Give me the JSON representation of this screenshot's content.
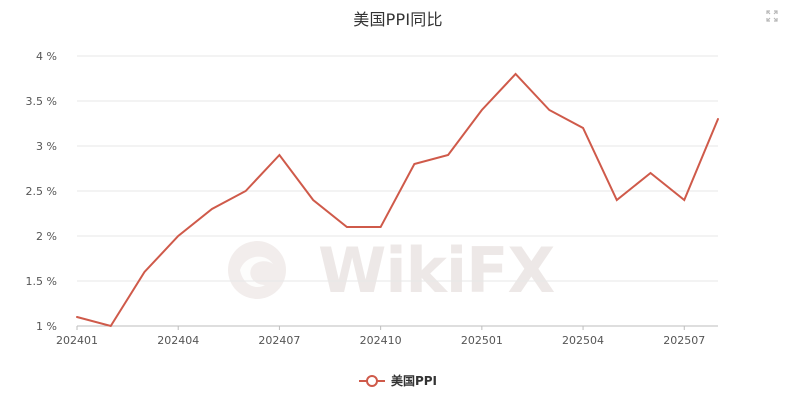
{
  "title": "美国PPI同比",
  "legend": {
    "label": "美国PPI"
  },
  "watermark": {
    "text": "WikiFX"
  },
  "icons": {
    "expand": "expand-icon"
  },
  "colors": {
    "series": "#cf5a4a",
    "grid": "#e7e7e7",
    "axis": "#bdbdbd",
    "text": "#555555"
  },
  "chart_data": {
    "type": "line",
    "title": "美国PPI同比",
    "x": [
      "202401",
      "202402",
      "202403",
      "202404",
      "202405",
      "202406",
      "202407",
      "202408",
      "202409",
      "202410",
      "202411",
      "202412",
      "202501",
      "202502",
      "202503",
      "202504",
      "202505",
      "202506",
      "202507",
      "202508"
    ],
    "x_tick_labels": [
      "202401",
      "202404",
      "202407",
      "202410",
      "202501",
      "202504",
      "202507"
    ],
    "y_tick_labels": [
      "1 %",
      "1.5 %",
      "2 %",
      "2.5 %",
      "3 %",
      "3.5 %",
      "4 %"
    ],
    "ylim": [
      1,
      4
    ],
    "series": [
      {
        "name": "美国PPI",
        "values": [
          1.1,
          1.0,
          1.6,
          2.0,
          2.3,
          2.5,
          2.9,
          2.4,
          2.1,
          2.1,
          2.8,
          2.9,
          3.4,
          3.8,
          3.4,
          3.2,
          2.4,
          2.7,
          2.4,
          3.3
        ]
      }
    ],
    "legend_position": "bottom",
    "grid": true
  }
}
